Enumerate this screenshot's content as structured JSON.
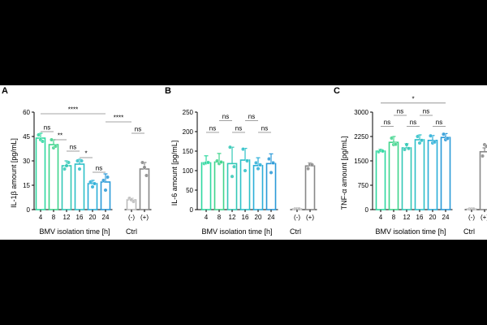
{
  "figure": {
    "panels": [
      {
        "letter": "A",
        "ylabel": "IL-1β amount [pg/mL]",
        "xlabel": "BMV isolation time [h]",
        "ctrl_label": "Ctrl"
      },
      {
        "letter": "B",
        "ylabel": "IL-6 amount [pg/mL]",
        "xlabel": "BMV isolation time [h]",
        "ctrl_label": "Ctrl"
      },
      {
        "letter": "C",
        "ylabel": "TNF-α amount [pg/mL]",
        "xlabel": "BMV isolation time [h]",
        "ctrl_label": "Ctrl"
      }
    ]
  },
  "chart_data": [
    {
      "type": "bar",
      "panel": "A",
      "categories": [
        "4",
        "8",
        "12",
        "16",
        "20",
        "24",
        "(-)",
        "(+)"
      ],
      "values": [
        44,
        40,
        27,
        28,
        16,
        17,
        6,
        25
      ],
      "errors": [
        3,
        3,
        3,
        3,
        2,
        5,
        1,
        4
      ],
      "points": [
        [
          46,
          43,
          42
        ],
        [
          43,
          38,
          39
        ],
        [
          25,
          27,
          29
        ],
        [
          30,
          25,
          30
        ],
        [
          17,
          14,
          16
        ],
        [
          18,
          12,
          20
        ],
        [
          7,
          6,
          5
        ],
        [
          29,
          26,
          21
        ]
      ],
      "colors": [
        "#2ed8a0",
        "#3fd48c",
        "#32c8b6",
        "#2cc0c8",
        "#2aaed8",
        "#2a9ad8",
        "#bbbbbb",
        "#888888"
      ],
      "ylim": [
        0,
        60
      ],
      "yticks": [
        "0",
        "15",
        "30",
        "45",
        "60"
      ],
      "xlabel": "BMV isolation time [h]",
      "ylabel": "IL-1β amount [pg/mL]",
      "group_label": "Ctrl",
      "annotations": [
        {
          "label": "****",
          "from": 0,
          "to": 5,
          "level": 59
        },
        {
          "label": "****",
          "from": 5,
          "to": 6,
          "level": 54
        },
        {
          "label": "ns",
          "from": 6,
          "to": 7,
          "level": 47
        },
        {
          "label": "ns",
          "from": 0,
          "to": 1,
          "level": 48
        },
        {
          "label": "**",
          "from": 1,
          "to": 2,
          "level": 43
        },
        {
          "label": "ns",
          "from": 2,
          "to": 3,
          "level": 36
        },
        {
          "label": "*",
          "from": 3,
          "to": 4,
          "level": 32
        },
        {
          "label": "ns",
          "from": 4,
          "to": 5,
          "level": 23
        }
      ]
    },
    {
      "type": "bar",
      "panel": "B",
      "categories": [
        "4",
        "8",
        "12",
        "16",
        "20",
        "24",
        "(-)",
        "(+)"
      ],
      "values": [
        120,
        122,
        118,
        127,
        113,
        118,
        2,
        112
      ],
      "errors": [
        18,
        22,
        42,
        30,
        20,
        25,
        0,
        8
      ],
      "points": [
        [
          118,
          120,
          121
        ],
        [
          125,
          118,
          122
        ],
        [
          160,
          85,
          110
        ],
        [
          155,
          100,
          125
        ],
        [
          120,
          105,
          115
        ],
        [
          130,
          95,
          120
        ],
        [
          2,
          2,
          2
        ],
        [
          105,
          116,
          115
        ]
      ],
      "colors": [
        "#2ed8a0",
        "#3fd48c",
        "#32c8b6",
        "#2cc0c8",
        "#2aaed8",
        "#2a9ad8",
        "#bbbbbb",
        "#888888"
      ],
      "ylim": [
        0,
        250
      ],
      "yticks": [
        "0",
        "50",
        "100",
        "150",
        "200",
        "250"
      ],
      "xlabel": "BMV isolation time [h]",
      "ylabel": "IL-6 amount [pg/mL]",
      "group_label": "Ctrl",
      "annotations": [
        {
          "label": "ns",
          "from": 1,
          "to": 2,
          "level": 228
        },
        {
          "label": "ns",
          "from": 3,
          "to": 4,
          "level": 228
        },
        {
          "label": "ns",
          "from": 0,
          "to": 1,
          "level": 198
        },
        {
          "label": "ns",
          "from": 2,
          "to": 3,
          "level": 198
        },
        {
          "label": "ns",
          "from": 4,
          "to": 5,
          "level": 198
        }
      ]
    },
    {
      "type": "bar",
      "panel": "C",
      "categories": [
        "4",
        "8",
        "12",
        "16",
        "20",
        "24",
        "(-)",
        "(+)"
      ],
      "values": [
        1800,
        2070,
        1900,
        2150,
        2130,
        2220,
        20,
        1780
      ],
      "errors": [
        60,
        180,
        130,
        150,
        150,
        120,
        0,
        120
      ],
      "points": [
        [
          1780,
          1820,
          1800
        ],
        [
          2200,
          2000,
          2010
        ],
        [
          1850,
          2000,
          1880
        ],
        [
          2250,
          2050,
          2130
        ],
        [
          2270,
          2050,
          2080
        ],
        [
          2320,
          2150,
          2190
        ],
        [
          20,
          20,
          20
        ],
        [
          1650,
          2000,
          1950
        ]
      ],
      "colors": [
        "#2ed8a0",
        "#3fd48c",
        "#32c8b6",
        "#2cc0c8",
        "#2aaed8",
        "#2a9ad8",
        "#bbbbbb",
        "#888888"
      ],
      "ylim": [
        0,
        3000
      ],
      "yticks": [
        "0",
        "750",
        "1500",
        "2250",
        "3000"
      ],
      "xlabel": "BMV isolation time [h]",
      "ylabel": "TNF-α amount [pg/mL]",
      "group_label": "Ctrl",
      "annotations": [
        {
          "label": "*",
          "from": 0,
          "to": 5,
          "level": 3280
        },
        {
          "label": "ns",
          "from": 1,
          "to": 2,
          "level": 2900
        },
        {
          "label": "ns",
          "from": 3,
          "to": 4,
          "level": 2900
        },
        {
          "label": "ns",
          "from": 0,
          "to": 1,
          "level": 2560
        },
        {
          "label": "ns",
          "from": 2,
          "to": 3,
          "level": 2560
        },
        {
          "label": "ns",
          "from": 4,
          "to": 5,
          "level": 2560
        }
      ]
    }
  ]
}
